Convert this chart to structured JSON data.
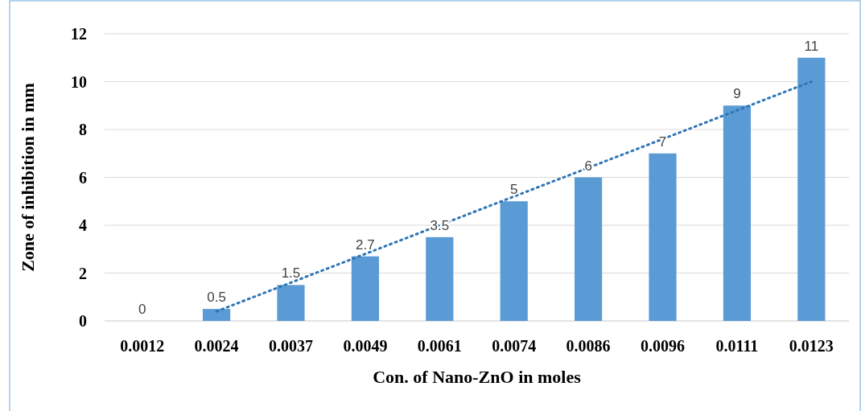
{
  "chart_data": {
    "type": "bar",
    "xlabel": "Con. of Nano-ZnO in moles",
    "ylabel": "Zone of inhibition in mm",
    "categories": [
      "0.0012",
      "0.0024",
      "0.0037",
      "0.0049",
      "0.0061",
      "0.0074",
      "0.0086",
      "0.0096",
      "0.0111",
      "0.0123"
    ],
    "series": [
      {
        "color": "#5b9bd5",
        "values": [
          0,
          0.5,
          1.5,
          2.7,
          3.5,
          5,
          6,
          7,
          9,
          11
        ],
        "value_labels": [
          "0",
          "0.5",
          "1.5",
          "2.7",
          "3.5",
          "5",
          "6",
          "7",
          "9",
          "11"
        ]
      },
      {
        "type": "line",
        "color": "#2e75b6",
        "line_style": "dotted",
        "marker": "none",
        "x": [
          "0.0012",
          "0.0024",
          "0.0037",
          "0.0049",
          "0.0061",
          "0.0074",
          "0.0086",
          "0.0096",
          "0.0111",
          "0.0123"
        ],
        "values": [
          null,
          0.4,
          1.6,
          2.8,
          4.0,
          5.2,
          6.4,
          7.6,
          8.8,
          10.0
        ]
      }
    ],
    "ylim": [
      0,
      12
    ],
    "yticks": [
      0,
      2,
      4,
      6,
      8,
      10,
      12
    ],
    "grid": "y"
  }
}
